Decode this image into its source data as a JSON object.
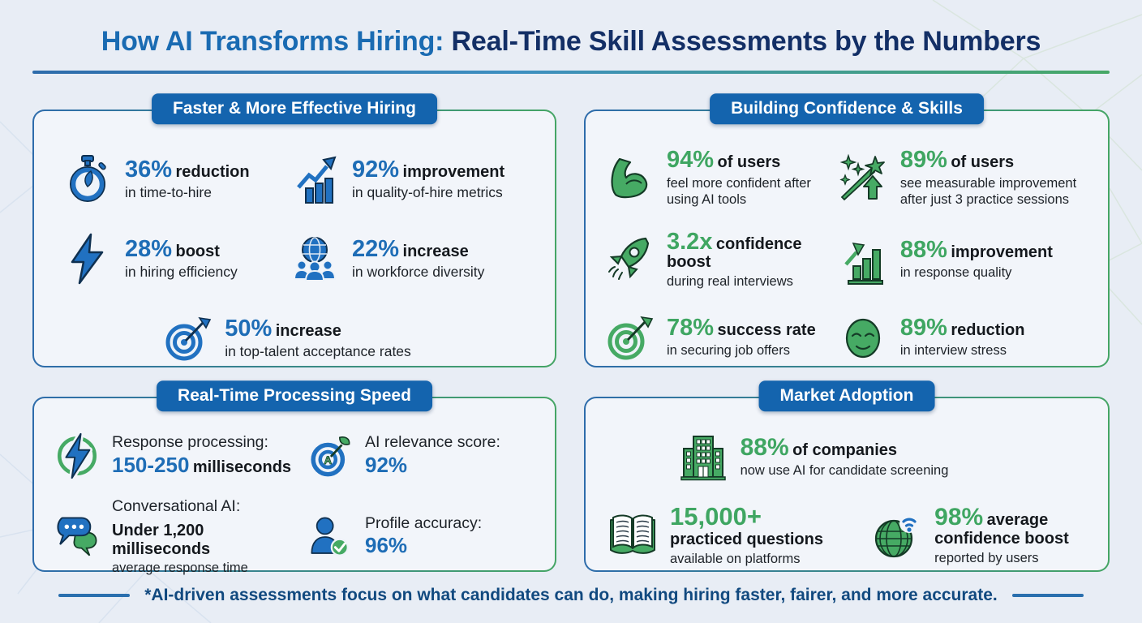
{
  "title": {
    "lead": "How AI Transforms Hiring:",
    "rest": " Real-Time Skill Assessments by the Numbers"
  },
  "colors": {
    "accent_blue": "#1e6db6",
    "accent_green": "#3fa662",
    "badge_blue": "#1464ae",
    "title_navy": "#132f66",
    "title_blue": "#1a6bb2",
    "panel_background": "#f2f5fa",
    "page_background": "#e8edf5"
  },
  "panels": {
    "hiring": {
      "header": "Faster & More Effective Hiring",
      "stats": [
        {
          "icon": "stopwatch-icon",
          "value": "36%",
          "label": "reduction",
          "sub": "in time-to-hire"
        },
        {
          "icon": "growth-chart-icon",
          "value": "92%",
          "label": "improvement",
          "sub": "in quality-of-hire metrics"
        },
        {
          "icon": "lightning-icon",
          "value": "28%",
          "label": "boost",
          "sub": "in hiring efficiency"
        },
        {
          "icon": "diversity-globe-icon",
          "value": "22%",
          "label": "increase",
          "sub": "in workforce diversity"
        },
        {
          "icon": "target-dart-icon",
          "value": "50%",
          "label": "increase",
          "sub": "in top-talent acceptance rates"
        }
      ]
    },
    "confidence": {
      "header": "Building Confidence & Skills",
      "stats": [
        {
          "icon": "bicep-icon",
          "value": "94%",
          "label": "of users",
          "sub": "feel more confident after using AI tools"
        },
        {
          "icon": "wand-sparkles-icon",
          "value": "89%",
          "label": "of users",
          "sub": "see measurable improvement after just 3 practice sessions"
        },
        {
          "icon": "rocket-icon",
          "value": "3.2x",
          "label": "confidence boost",
          "sub": "during real interviews"
        },
        {
          "icon": "bars-up-icon",
          "value": "88%",
          "label": "improvement",
          "sub": "in response quality"
        },
        {
          "icon": "target-green-icon",
          "value": "78%",
          "label": "success rate",
          "sub": "in securing job offers"
        },
        {
          "icon": "calm-face-icon",
          "value": "89%",
          "label": "reduction",
          "sub": "in interview stress"
        }
      ]
    },
    "speed": {
      "header": "Real-Time Processing Speed",
      "stats": [
        {
          "icon": "energy-circle-icon",
          "caption": "Response processing:",
          "value": "150-250",
          "unit": "milliseconds",
          "sub": ""
        },
        {
          "icon": "ai-target-icon",
          "caption": "AI relevance score:",
          "value": "92%",
          "unit": "",
          "sub": ""
        },
        {
          "icon": "chat-bubbles-icon",
          "caption": "Conversational AI:",
          "value": "",
          "unit": "Under 1,200 milliseconds",
          "sub": "average response time"
        },
        {
          "icon": "profile-check-icon",
          "caption": "Profile accuracy:",
          "value": "96%",
          "unit": "",
          "sub": ""
        }
      ]
    },
    "adoption": {
      "header": "Market Adoption",
      "stats": [
        {
          "icon": "building-icon",
          "value": "88%",
          "label": "of companies",
          "sub": "now use AI for candidate screening"
        },
        {
          "icon": "book-icon",
          "value": "15,000+",
          "label": "practiced questions",
          "sub": "available on platforms"
        },
        {
          "icon": "globe-wifi-icon",
          "value": "98%",
          "label": "average confidence boost",
          "sub": "reported by users"
        }
      ]
    }
  },
  "footer": {
    "note": "*AI-driven assessments focus on what candidates can do, making hiring faster, fairer, and more accurate."
  }
}
